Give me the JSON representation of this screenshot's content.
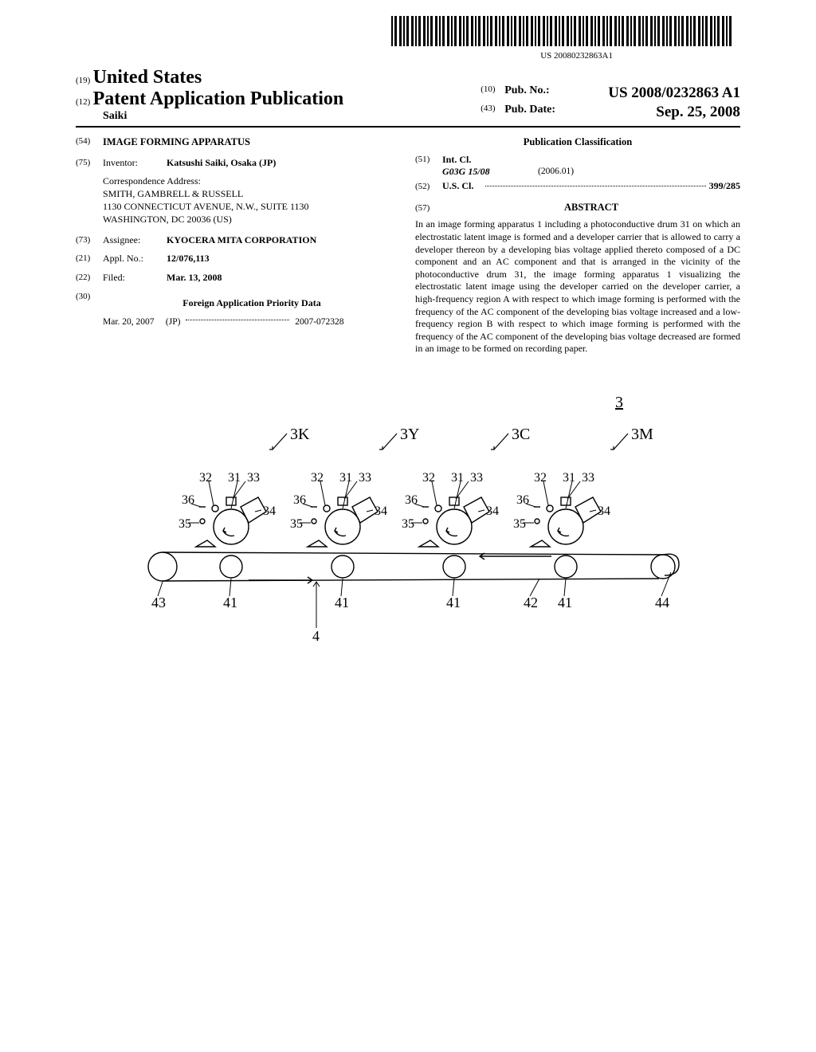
{
  "barcode_number": "US 20080232863A1",
  "header": {
    "code19": "(19)",
    "country": "United States",
    "code12": "(12)",
    "pub_type": "Patent Application Publication",
    "author": "Saiki",
    "code10": "(10)",
    "pub_no_label": "Pub. No.:",
    "pub_no": "US 2008/0232863 A1",
    "code43": "(43)",
    "pub_date_label": "Pub. Date:",
    "pub_date": "Sep. 25, 2008"
  },
  "left": {
    "code54": "(54)",
    "title": "IMAGE FORMING APPARATUS",
    "code75": "(75)",
    "inventor_label": "Inventor:",
    "inventor": "Katsushi Saiki, Osaka (JP)",
    "corr_label": "Correspondence Address:",
    "corr_1": "SMITH, GAMBRELL & RUSSELL",
    "corr_2": "1130 CONNECTICUT AVENUE, N.W., SUITE 1130",
    "corr_3": "WASHINGTON, DC 20036 (US)",
    "code73": "(73)",
    "assignee_label": "Assignee:",
    "assignee": "KYOCERA MITA CORPORATION",
    "code21": "(21)",
    "appl_label": "Appl. No.:",
    "appl_no": "12/076,113",
    "code22": "(22)",
    "filed_label": "Filed:",
    "filed": "Mar. 13, 2008",
    "code30": "(30)",
    "priority_head": "Foreign Application Priority Data",
    "priority_date": "Mar. 20, 2007",
    "priority_country": "(JP)",
    "priority_no": "2007-072328"
  },
  "right": {
    "class_head": "Publication Classification",
    "code51": "(51)",
    "intcl_label": "Int. Cl.",
    "intcl_val": "G03G 15/08",
    "intcl_year": "(2006.01)",
    "code52": "(52)",
    "uscl_label": "U.S. Cl.",
    "uscl_val": "399/285",
    "code57": "(57)",
    "abstract_head": "ABSTRACT",
    "abstract": "In an image forming apparatus 1 including a photoconductive drum 31 on which an electrostatic latent image is formed and a developer carrier that is allowed to carry a developer thereon by a developing bias voltage applied thereto composed of a DC component and an AC component and that is arranged in the vicinity of the photoconductive drum 31, the image forming apparatus 1 visualizing the electrostatic latent image using the developer carried on the developer carrier, a high-frequency region A with respect to which image forming is performed with the frequency of the AC component of the developing bias voltage increased and a low-frequency region B with respect to which image forming is performed with the frequency of the AC component of the developing bias voltage decreased are formed in an image to be formed on recording paper."
  },
  "figure": {
    "main_ref": "3",
    "unit_labels": [
      "3K",
      "3Y",
      "3C",
      "3M"
    ],
    "part_numbers": [
      "31",
      "32",
      "33",
      "34",
      "35",
      "36"
    ],
    "belt_numbers": [
      "41",
      "42",
      "43",
      "44",
      "4"
    ]
  }
}
